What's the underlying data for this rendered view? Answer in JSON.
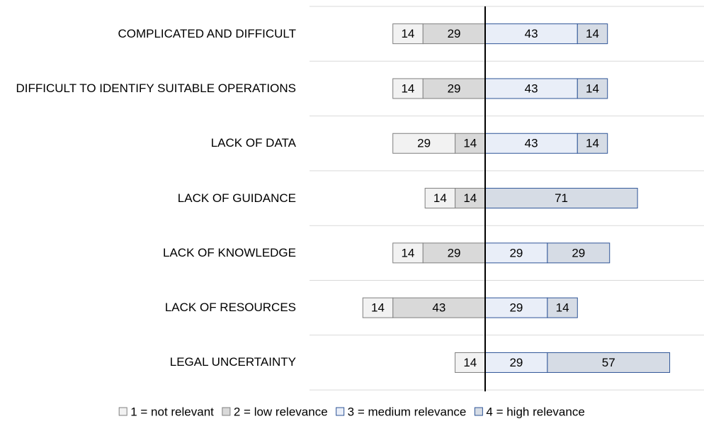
{
  "chart_data": {
    "type": "diverging-bar",
    "categories": [
      "COMPLICATED AND DIFFICULT",
      "DIFFICULT TO IDENTIFY SUITABLE OPERATIONS",
      "LACK OF DATA",
      "LACK OF GUIDANCE",
      "LACK OF KNOWLEDGE",
      "LACK OF RESOURCES",
      "LEGAL UNCERTAINTY"
    ],
    "series": [
      {
        "name": "1 = not relevant",
        "color": "#f2f2f2",
        "values": [
          14,
          14,
          29,
          14,
          14,
          14,
          14
        ]
      },
      {
        "name": "2 = low relevance",
        "color": "#d9d9d9",
        "values": [
          29,
          29,
          14,
          14,
          29,
          43,
          null
        ]
      },
      {
        "name": "3 = medium relevance",
        "color": "#e9eef8",
        "values": [
          43,
          43,
          43,
          null,
          29,
          29,
          29
        ]
      },
      {
        "name": "4 = high relevance",
        "color": "#d6dce5",
        "values": [
          14,
          14,
          14,
          71,
          29,
          14,
          57
        ]
      }
    ]
  }
}
